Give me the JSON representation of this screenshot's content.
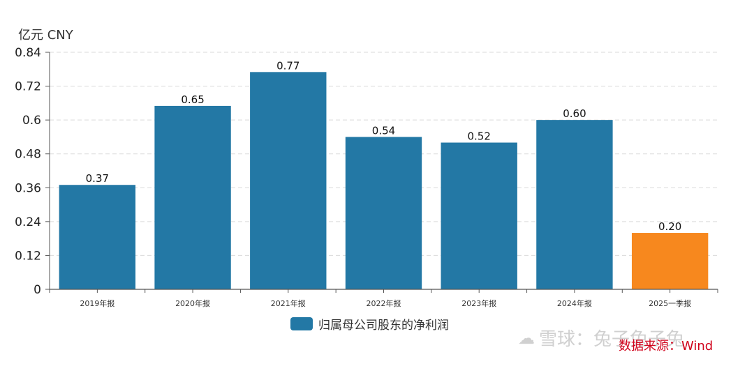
{
  "unit_label": "亿元  CNY",
  "legend": {
    "label": "归属母公司股东的净利润",
    "color": "#2378a5"
  },
  "source": "数据来源：Wind",
  "watermark": {
    "text": "雪球：兔子兔子兔",
    "icon": "wechat-icon"
  },
  "colors": {
    "bar": "#2378a5",
    "highlight": "#f7881e",
    "axis": "#555555",
    "grid": "#d9d9d9"
  },
  "chart_data": {
    "type": "bar",
    "categories": [
      "2019年报",
      "2020年报",
      "2021年报",
      "2022年报",
      "2023年报",
      "2024年报",
      "2025一季报"
    ],
    "series": [
      {
        "name": "归属母公司股东的净利润",
        "values": [
          0.37,
          0.65,
          0.77,
          0.54,
          0.52,
          0.6,
          0.2
        ]
      }
    ],
    "data_labels": [
      "0.37",
      "0.65",
      "0.77",
      "0.54",
      "0.52",
      "0.60",
      "0.20"
    ],
    "highlight_index": 6,
    "yticks": [
      "0",
      "0.12",
      "0.24",
      "0.36",
      "0.48",
      "0.6",
      "0.72",
      "0.84"
    ],
    "ylim": [
      0,
      0.84
    ],
    "ylabel": "亿元  CNY",
    "grid": true,
    "legend_position": "bottom"
  }
}
